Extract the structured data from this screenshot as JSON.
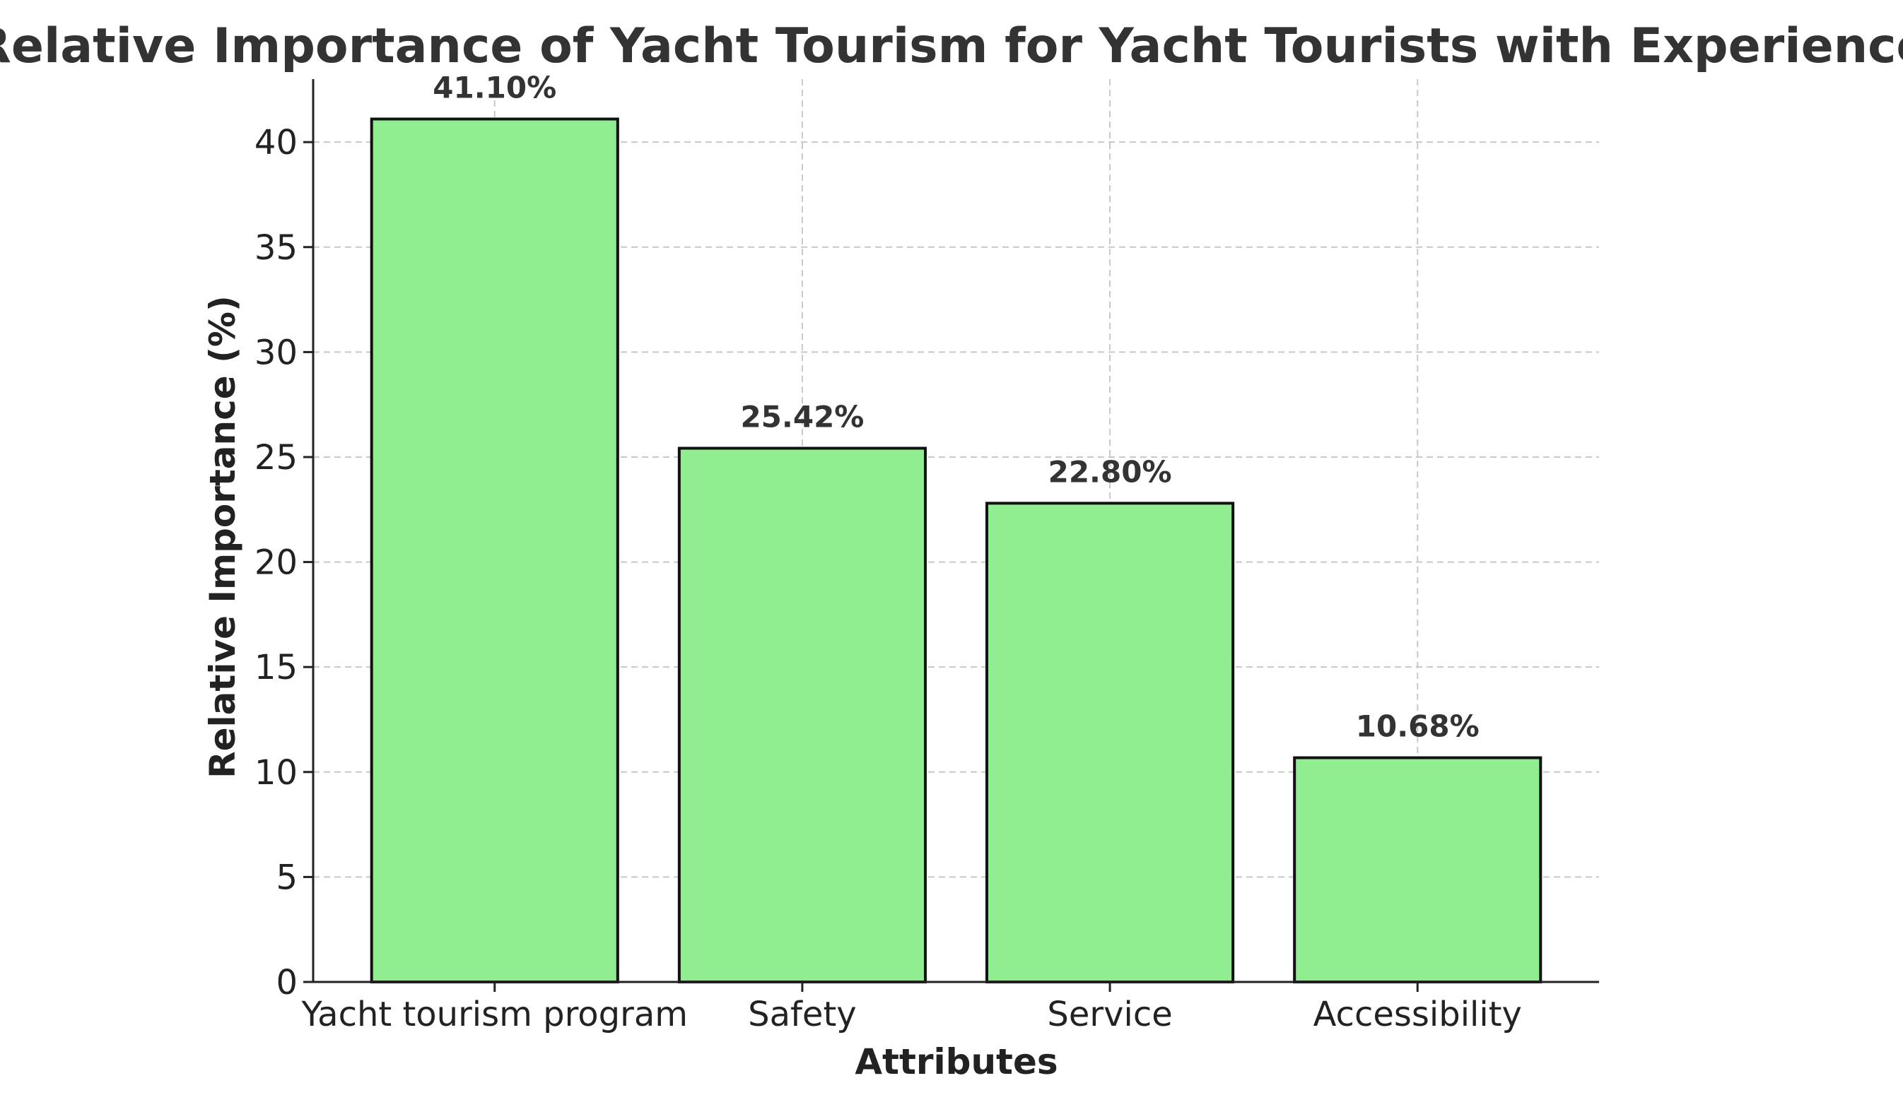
{
  "chart_data": {
    "type": "bar",
    "title": "Relative Importance of Yacht Tourism for Yacht Tourists with Experience",
    "xlabel": "Attributes",
    "ylabel": "Relative Importance (%)",
    "categories": [
      "Yacht tourism program",
      "Safety",
      "Service",
      "Accessibility"
    ],
    "values": [
      41.1,
      25.42,
      22.8,
      10.68
    ],
    "value_labels": [
      "41.10%",
      "25.42%",
      "22.80%",
      "10.68%"
    ],
    "ylim": [
      0,
      43
    ],
    "yticks": [
      0,
      5,
      10,
      15,
      20,
      25,
      30,
      35,
      40
    ],
    "grid": true,
    "bar_color": "#90ee90",
    "bar_edge_color": "#111111"
  }
}
